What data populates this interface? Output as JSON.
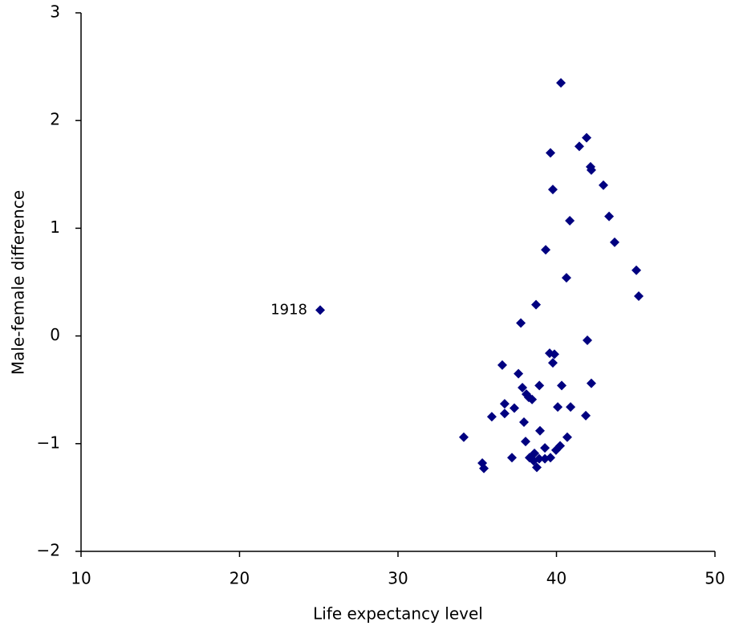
{
  "chart_data": {
    "type": "scatter",
    "xlabel": "Life expectancy level",
    "ylabel": "Male-female difference",
    "color": "#000080",
    "marker": "diamond",
    "xlim": [
      10,
      50
    ],
    "ylim": [
      -2,
      3
    ],
    "xticks": [
      10,
      20,
      30,
      40,
      50
    ],
    "yticks": [
      {
        "value": -2,
        "label": "−2"
      },
      {
        "value": -1,
        "label": "−1"
      },
      0,
      1,
      2,
      3
    ],
    "x": [
      25.09,
      40.28,
      41.9,
      41.44,
      39.62,
      42.15,
      42.2,
      39.77,
      42.96,
      40.84,
      43.32,
      43.67,
      39.32,
      45.04,
      40.63,
      45.19,
      38.71,
      37.75,
      39.57,
      39.87,
      41.95,
      39.77,
      36.58,
      37.6,
      37.85,
      40.33,
      42.2,
      38.92,
      38.1,
      38.25,
      38.46,
      36.73,
      37.34,
      35.92,
      36.73,
      40.08,
      40.89,
      41.85,
      37.95,
      38.96,
      34.15,
      40.68,
      38.05,
      40.23,
      39.97,
      39.27,
      38.61,
      38.3,
      37.19,
      39.62,
      39.27,
      38.91,
      38.56,
      35.32,
      38.76,
      35.42
    ],
    "y": [
      0.24,
      2.35,
      1.84,
      1.76,
      1.7,
      1.57,
      1.54,
      1.36,
      1.4,
      1.07,
      1.11,
      0.87,
      0.8,
      0.61,
      0.54,
      0.37,
      0.29,
      0.12,
      -0.16,
      -0.17,
      -0.04,
      -0.25,
      -0.27,
      -0.35,
      -0.48,
      -0.46,
      -0.44,
      -0.46,
      -0.54,
      -0.57,
      -0.59,
      -0.63,
      -0.67,
      -0.75,
      -0.72,
      -0.66,
      -0.66,
      -0.74,
      -0.8,
      -0.88,
      -0.94,
      -0.94,
      -0.98,
      -1.02,
      -1.06,
      -1.04,
      -1.09,
      -1.13,
      -1.13,
      -1.13,
      -1.14,
      -1.14,
      -1.16,
      -1.18,
      -1.22,
      -1.23
    ],
    "point_labels": [
      "1918",
      null,
      null,
      null,
      null,
      null,
      null,
      null,
      null,
      null,
      null,
      null,
      null,
      null,
      null,
      null,
      null,
      null,
      null,
      null,
      null,
      null,
      null,
      null,
      null,
      null,
      null,
      null,
      null,
      null,
      null,
      null,
      null,
      null,
      null,
      null,
      null,
      null,
      null,
      null,
      null,
      null,
      null,
      null,
      null,
      null,
      null,
      null,
      null,
      null,
      null,
      null,
      null,
      null,
      null,
      null
    ]
  }
}
